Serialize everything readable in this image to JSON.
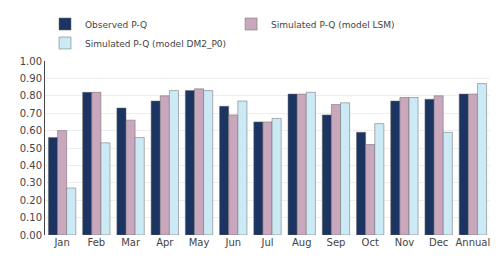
{
  "chart_data": {
    "type": "bar",
    "categories": [
      "Jan",
      "Feb",
      "Mar",
      "Apr",
      "May",
      "Jun",
      "Jul",
      "Aug",
      "Sep",
      "Oct",
      "Nov",
      "Dec",
      "Annual"
    ],
    "series": [
      {
        "name": "Observed P-Q",
        "color": "#1C3461",
        "values": [
          0.56,
          0.82,
          0.73,
          0.77,
          0.83,
          0.74,
          0.65,
          0.81,
          0.69,
          0.59,
          0.77,
          0.78,
          0.81
        ]
      },
      {
        "name": "Simulated P-Q (model LSM)",
        "color": "#C9A8BE",
        "values": [
          0.6,
          0.82,
          0.66,
          0.8,
          0.84,
          0.69,
          0.65,
          0.81,
          0.75,
          0.52,
          0.79,
          0.8,
          0.81
        ]
      },
      {
        "name": "Simulated P-Q (model DM2_P0)",
        "color": "#CCEAF5",
        "values": [
          0.27,
          0.53,
          0.56,
          0.83,
          0.83,
          0.77,
          0.67,
          0.82,
          0.76,
          0.64,
          0.79,
          0.59,
          0.87
        ]
      }
    ],
    "ylim": [
      0.0,
      1.0
    ],
    "yticks": [
      {
        "value": 0.0,
        "label": "0.00"
      },
      {
        "value": 0.1,
        "label": "0.10"
      },
      {
        "value": 0.2,
        "label": "0.20"
      },
      {
        "value": 0.3,
        "label": "0.30"
      },
      {
        "value": 0.4,
        "label": "0.40"
      },
      {
        "value": 0.5,
        "label": "0.50"
      },
      {
        "value": 0.6,
        "label": "0.60"
      },
      {
        "value": 0.7,
        "label": "0.70"
      },
      {
        "value": 0.8,
        "label": "0.80"
      },
      {
        "value": 0.9,
        "label": "0.90"
      },
      {
        "value": 1.0,
        "label": "1.00"
      }
    ],
    "grid": true,
    "legend": "upper left"
  }
}
